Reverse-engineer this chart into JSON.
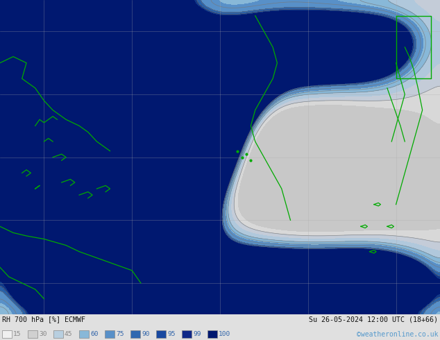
{
  "title_left": "RH 700 hPa [%] ECMWF",
  "title_right": "Su 26-05-2024 12:00 UTC (18+66)",
  "copyright": "©weatheronline.co.uk",
  "legend_values": [
    "15",
    "30",
    "45",
    "60",
    "75",
    "90",
    "95",
    "99",
    "100"
  ],
  "legend_colors": [
    "#f0f0f0",
    "#d0d0d0",
    "#b8cfe0",
    "#88b8d8",
    "#5890c8",
    "#3068b0",
    "#1848a0",
    "#102888",
    "#001870"
  ],
  "contour_label_color": "#111111",
  "grid_color": "#aaaaaa",
  "map_bg": "#c8c8c8",
  "bar_bg": "#e0e0e0",
  "title_color": "#111111",
  "copyright_color": "#5599cc",
  "coast_color": "#00aa00",
  "figsize": [
    6.34,
    4.9
  ],
  "dpi": 100,
  "levels": [
    0,
    15,
    30,
    45,
    60,
    75,
    90,
    95,
    99,
    100
  ],
  "fill_colors": [
    "#c8c8c8",
    "#d8d8d8",
    "#c4ccd8",
    "#b0c8dc",
    "#88b8d8",
    "#5890c8",
    "#2860a8",
    "#103888",
    "#001870"
  ]
}
